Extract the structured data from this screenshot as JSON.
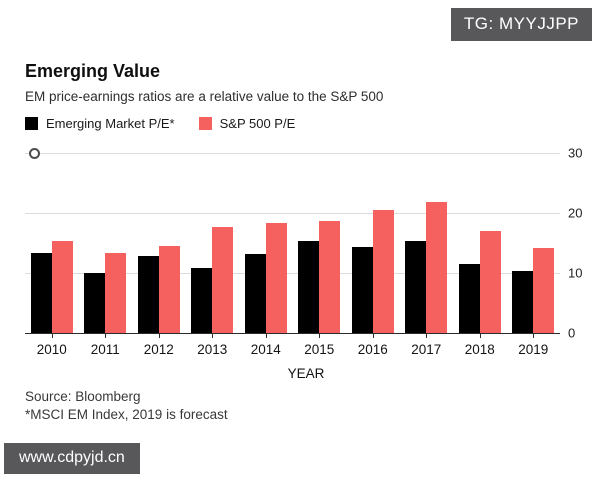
{
  "watermarks": {
    "top_right": "TG: MYYJJPP",
    "bottom_left": "www.cdpyjd.cn"
  },
  "header": {
    "title": "Emerging Value",
    "subtitle": "EM price-earnings ratios are a relative value to the S&P 500"
  },
  "legend": [
    {
      "label": "Emerging Market P/E*",
      "color": "#000000"
    },
    {
      "label": "S&P 500 P/E",
      "color": "#F4615E"
    }
  ],
  "chart_data": {
    "type": "bar",
    "title": "Emerging Value",
    "subtitle": "EM price-earnings ratios are a relative value to the S&P 500",
    "categories": [
      "2010",
      "2011",
      "2012",
      "2013",
      "2014",
      "2015",
      "2016",
      "2017",
      "2018",
      "2019"
    ],
    "series": [
      {
        "name": "Emerging Market P/E*",
        "key": "em",
        "color": "#000000",
        "values": [
          13.4,
          10.0,
          12.9,
          10.8,
          13.1,
          15.3,
          14.3,
          15.3,
          11.5,
          10.3
        ]
      },
      {
        "name": "S&P 500 P/E",
        "key": "sp500",
        "color": "#F4615E",
        "values": [
          15.3,
          13.3,
          14.5,
          17.6,
          18.3,
          18.6,
          20.5,
          21.8,
          17.0,
          14.2
        ]
      }
    ],
    "xlabel": "YEAR",
    "ylabel": "",
    "ylim": [
      0,
      30
    ],
    "yticks": [
      0,
      10,
      20,
      30
    ],
    "grid": true,
    "legend_position": "top-left"
  },
  "axis": {
    "x_title": "YEAR",
    "y_tick_labels": [
      "0",
      "10",
      "20",
      "30"
    ]
  },
  "footer": {
    "source": "Source: Bloomberg",
    "note": "*MSCI EM Index, 2019 is forecast"
  }
}
